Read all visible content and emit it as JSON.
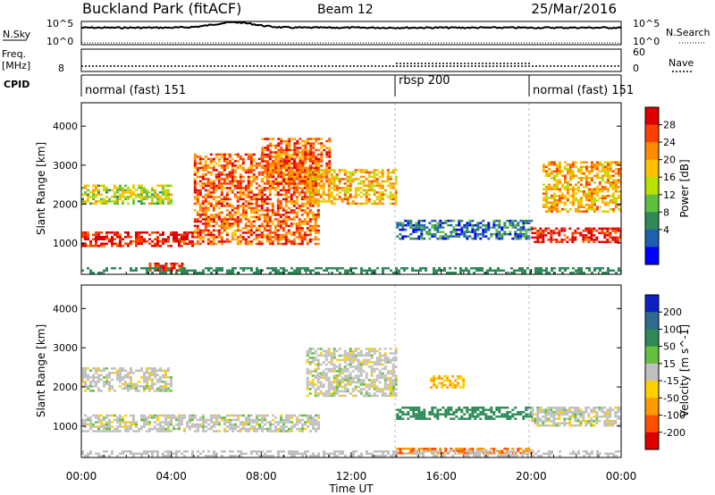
{
  "header": {
    "station": "Buckland Park (fitACF)",
    "beam": "Beam 12",
    "date": "25/Mar/2016"
  },
  "panels": {
    "nsky": {
      "label_left": "N.Sky",
      "label_right": "N.Search",
      "ticks_left": [
        "10^5",
        "10^0"
      ],
      "ticks_right": [
        "10^5",
        "10^0"
      ]
    },
    "freq": {
      "label_left_1": "Freq.",
      "label_left_2": "[MHz]",
      "label_right": "Nave",
      "ticks_left": [
        "8"
      ],
      "ticks_right": [
        "60",
        "0"
      ]
    },
    "cpid": {
      "label": "CPID",
      "segments": [
        {
          "label": "normal (fast) 151",
          "start_h": 0,
          "end_h": 14
        },
        {
          "label": "rbsp 200",
          "start_h": 14,
          "end_h": 20
        },
        {
          "label": "normal (fast) 151",
          "start_h": 20,
          "end_h": 24
        }
      ]
    }
  },
  "xaxis": {
    "label": "Time UT",
    "ticks": [
      "00:00",
      "04:00",
      "08:00",
      "12:00",
      "16:00",
      "20:00",
      "00:00"
    ]
  },
  "power_colorbar": {
    "label": "Power [dB]",
    "ticks": [
      "28",
      "24",
      "20",
      "16",
      "12",
      "8",
      "4"
    ],
    "colors": [
      "#e00000",
      "#ff4000",
      "#ff8c00",
      "#ffc000",
      "#b8e000",
      "#5fc040",
      "#2e8b57",
      "#1e5fb0",
      "#0000ff"
    ]
  },
  "velocity_colorbar": {
    "label": "Velocity [m s^-1]",
    "ticks": [
      "200",
      "100",
      "50",
      "15",
      "-15",
      "-50",
      "-100",
      "-200"
    ],
    "colors": [
      "#1020c0",
      "#2e6b8c",
      "#2e8b57",
      "#66c040",
      "#c0c0c0",
      "#ffd000",
      "#ff9a00",
      "#ff5000",
      "#e00000"
    ]
  },
  "chart_data": {
    "type": "heatmap",
    "title": "Buckland Park (fitACF)",
    "xlabel": "Time UT",
    "ylabel": "Slant Range [km]",
    "xlim": [
      "00:00",
      "24:00"
    ],
    "ylim": [
      200,
      4600
    ],
    "ytick_labels": [
      "1000",
      "2000",
      "3000",
      "4000"
    ],
    "mode_changes_ut": [
      "14:00",
      "20:00"
    ],
    "power_echo_bands_km_vs_ut": [
      {
        "start": "00:00",
        "end": "05:00",
        "range_km": [
          950,
          1300
        ],
        "power_db": 28
      },
      {
        "start": "00:00",
        "end": "04:00",
        "range_km": [
          2000,
          2500
        ],
        "power_db": 16
      },
      {
        "start": "03:00",
        "end": "04:30",
        "range_km": [
          300,
          500
        ],
        "power_db": 28
      },
      {
        "start": "05:00",
        "end": "10:30",
        "range_km": [
          1000,
          3300
        ],
        "power_db": 24
      },
      {
        "start": "08:00",
        "end": "11:00",
        "range_km": [
          2500,
          3700
        ],
        "power_db": 24
      },
      {
        "start": "10:00",
        "end": "14:00",
        "range_km": [
          2000,
          2900
        ],
        "power_db": 20
      },
      {
        "start": "14:00",
        "end": "20:00",
        "range_km": [
          1100,
          1600
        ],
        "power_db": 8
      },
      {
        "start": "20:00",
        "end": "24:00",
        "range_km": [
          1000,
          1400
        ],
        "power_db": 28
      },
      {
        "start": "20:30",
        "end": "24:00",
        "range_km": [
          1800,
          3100
        ],
        "power_db": 20
      }
    ],
    "velocity_echo_bands_km_vs_ut": [
      {
        "start": "00:00",
        "end": "10:30",
        "range_km": [
          900,
          1300
        ],
        "velocity_ms": 0
      },
      {
        "start": "00:00",
        "end": "04:00",
        "range_km": [
          1900,
          2500
        ],
        "velocity_ms": 0
      },
      {
        "start": "10:00",
        "end": "14:00",
        "range_km": [
          1800,
          3000
        ],
        "velocity_ms": 0
      },
      {
        "start": "14:00",
        "end": "20:00",
        "range_km": [
          1200,
          1500
        ],
        "velocity_ms": 50
      },
      {
        "start": "15:30",
        "end": "17:00",
        "range_km": [
          2000,
          2300
        ],
        "velocity_ms": -50
      },
      {
        "start": "14:00",
        "end": "20:00",
        "range_km": [
          300,
          450
        ],
        "velocity_ms": -100
      },
      {
        "start": "20:00",
        "end": "24:00",
        "range_km": [
          1000,
          1500
        ],
        "velocity_ms": 0
      }
    ]
  }
}
